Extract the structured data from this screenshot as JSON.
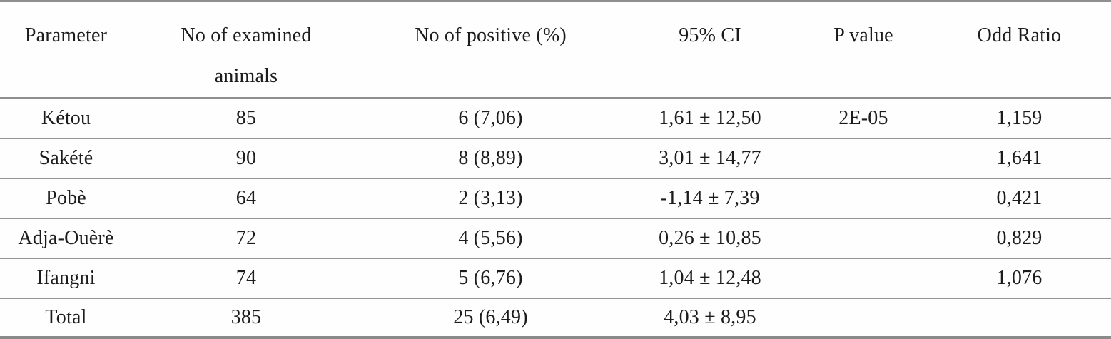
{
  "table": {
    "columns": [
      {
        "id": "parameter",
        "label": "Parameter"
      },
      {
        "id": "examined",
        "label": "No of examined animals"
      },
      {
        "id": "positive",
        "label": "No of positive (%)"
      },
      {
        "id": "ci",
        "label": "95% CI"
      },
      {
        "id": "p_value",
        "label": "P value"
      },
      {
        "id": "odd_ratio",
        "label": "Odd Ratio"
      }
    ],
    "rows": [
      {
        "parameter": "Kétou",
        "examined": "85",
        "positive": "6 (7,06)",
        "ci": "1,61 ± 12,50",
        "p_value": "2E-05",
        "odd_ratio": "1,159"
      },
      {
        "parameter": "Sakété",
        "examined": "90",
        "positive": "8 (8,89)",
        "ci": "3,01 ± 14,77",
        "p_value": "",
        "odd_ratio": "1,641"
      },
      {
        "parameter": "Pobè",
        "examined": "64",
        "positive": "2 (3,13)",
        "ci": "-1,14 ± 7,39",
        "p_value": "",
        "odd_ratio": "0,421"
      },
      {
        "parameter": "Adja-Ouèrè",
        "examined": "72",
        "positive": "4 (5,56)",
        "ci": "0,26 ± 10,85",
        "p_value": "",
        "odd_ratio": "0,829"
      },
      {
        "parameter": "Ifangni",
        "examined": "74",
        "positive": "5 (6,76)",
        "ci": "1,04 ± 12,48",
        "p_value": "",
        "odd_ratio": "1,076"
      },
      {
        "parameter": "Total",
        "examined": "385",
        "positive": "25 (6,49)",
        "ci": "4,03 ± 8,95",
        "p_value": "",
        "odd_ratio": ""
      }
    ],
    "colors": {
      "text": "#1c1c1c",
      "rule": "#8f8f8f",
      "background": "#fefefe"
    }
  }
}
